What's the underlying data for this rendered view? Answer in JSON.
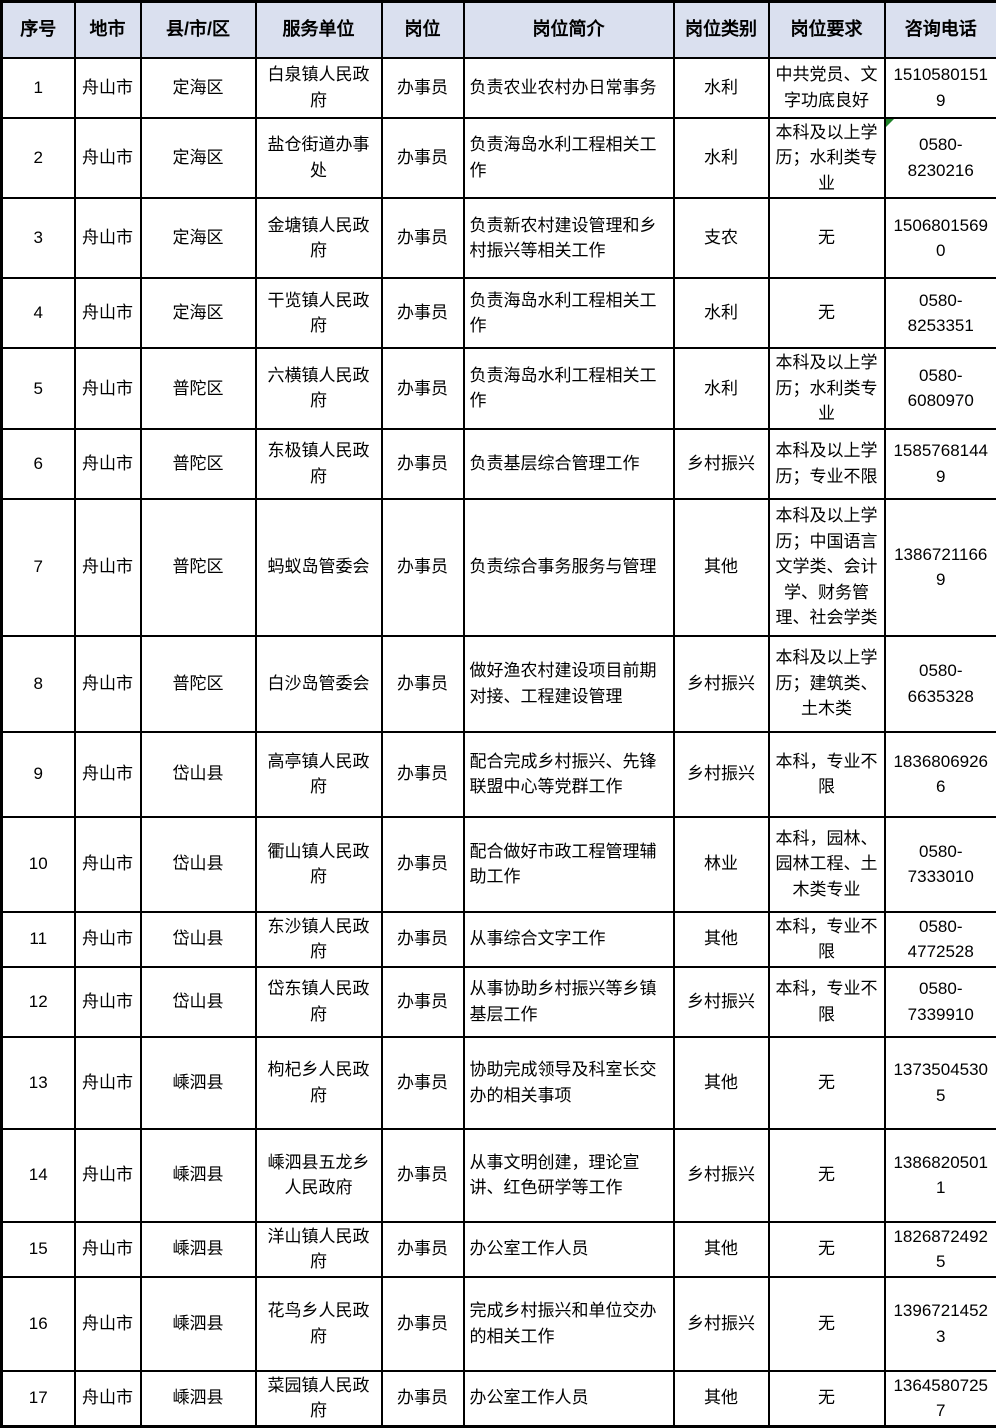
{
  "colors": {
    "header_background": "#dae0ef",
    "border": "#000000",
    "text": "#000000",
    "error_marker_green": "#1e8228",
    "page_background": "#ffffff"
  },
  "table": {
    "headers": [
      "序号",
      "地市",
      "县/市/区",
      "服务单位",
      "岗位",
      "岗位简介",
      "岗位类别",
      "岗位要求",
      "咨询电话"
    ],
    "rows": [
      {
        "no": "1",
        "city": "舟山市",
        "district": "定海区",
        "unit": "白泉镇人民政府",
        "position": "办事员",
        "description": "负责农业农村办日常事务",
        "category": "水利",
        "requirement": "中共党员、文字功底良好",
        "phone": "15105801519"
      },
      {
        "no": "2",
        "city": "舟山市",
        "district": "定海区",
        "unit": "盐仓街道办事处",
        "position": "办事员",
        "description": "负责海岛水利工程相关工作",
        "category": "水利",
        "requirement": "本科及以上学历；水利类专业",
        "phone": "0580-\n8230216",
        "marker": "error-indicator"
      },
      {
        "no": "3",
        "city": "舟山市",
        "district": "定海区",
        "unit": "金塘镇人民政府",
        "position": "办事员",
        "description": "负责新农村建设管理和乡村振兴等相关工作",
        "category": "支农",
        "requirement": "无",
        "phone": "15068015690"
      },
      {
        "no": "4",
        "city": "舟山市",
        "district": "定海区",
        "unit": "干览镇人民政府",
        "position": "办事员",
        "description": "负责海岛水利工程相关工作",
        "category": "水利",
        "requirement": "无",
        "phone": "0580-8253351"
      },
      {
        "no": "5",
        "city": "舟山市",
        "district": "普陀区",
        "unit": "六横镇人民政府",
        "position": "办事员",
        "description": "负责海岛水利工程相关工作",
        "category": "水利",
        "requirement": "本科及以上学历；水利类专业",
        "phone": "0580-6080970"
      },
      {
        "no": "6",
        "city": "舟山市",
        "district": "普陀区",
        "unit": "东极镇人民政府",
        "position": "办事员",
        "description": "负责基层综合管理工作",
        "category": "乡村振兴",
        "requirement": "本科及以上学历；专业不限",
        "phone": "15857681449"
      },
      {
        "no": "7",
        "city": "舟山市",
        "district": "普陀区",
        "unit": "蚂蚁岛管委会",
        "position": "办事员",
        "description": "负责综合事务服务与管理",
        "category": "其他",
        "requirement": "本科及以上学历；中国语言文学类、会计学、财务管理、社会学类",
        "phone": "13867211669"
      },
      {
        "no": "8",
        "city": "舟山市",
        "district": "普陀区",
        "unit": "白沙岛管委会",
        "position": "办事员",
        "description": "做好渔农村建设项目前期对接、工程建设管理",
        "category": "乡村振兴",
        "requirement": "本科及以上学历；建筑类、土木类",
        "phone": "0580-6635328"
      },
      {
        "no": "9",
        "city": "舟山市",
        "district": "岱山县",
        "unit": "高亭镇人民政府",
        "position": "办事员",
        "description": "配合完成乡村振兴、先锋联盟中心等党群工作",
        "category": "乡村振兴",
        "requirement": "本科，专业不限",
        "phone": "18368069266"
      },
      {
        "no": "10",
        "city": "舟山市",
        "district": "岱山县",
        "unit": "衢山镇人民政府",
        "position": "办事员",
        "description": "配合做好市政工程管理辅助工作",
        "category": "林业",
        "requirement": "本科，园林、园林工程、土木类专业",
        "phone": "0580-7333010"
      },
      {
        "no": "11",
        "city": "舟山市",
        "district": "岱山县",
        "unit": "东沙镇人民政府",
        "position": "办事员",
        "description": "从事综合文字工作",
        "category": "其他",
        "requirement": "本科，专业不限",
        "phone": "0580-4772528"
      },
      {
        "no": "12",
        "city": "舟山市",
        "district": "岱山县",
        "unit": "岱东镇人民政府",
        "position": "办事员",
        "description": "从事协助乡村振兴等乡镇基层工作",
        "category": "乡村振兴",
        "requirement": "本科，专业不限",
        "phone": "0580-7339910"
      },
      {
        "no": "13",
        "city": "舟山市",
        "district": "嵊泗县",
        "unit": "枸杞乡人民政府",
        "position": "办事员",
        "description": "协助完成领导及科室长交办的相关事项",
        "category": "其他",
        "requirement": "无",
        "phone": "13735045305"
      },
      {
        "no": "14",
        "city": "舟山市",
        "district": "嵊泗县",
        "unit": "嵊泗县五龙乡人民政府",
        "position": "办事员",
        "description": "从事文明创建，理论宣讲、红色研学等工作",
        "category": "乡村振兴",
        "requirement": "无",
        "phone": "13868205011"
      },
      {
        "no": "15",
        "city": "舟山市",
        "district": "嵊泗县",
        "unit": "洋山镇人民政府",
        "position": "办事员",
        "description": "办公室工作人员",
        "category": "其他",
        "requirement": "无",
        "phone": "18268724925"
      },
      {
        "no": "16",
        "city": "舟山市",
        "district": "嵊泗县",
        "unit": "花鸟乡人民政府",
        "position": "办事员",
        "description": "完成乡村振兴和单位交办的相关工作",
        "category": "乡村振兴",
        "requirement": "无",
        "phone": "13967214523"
      },
      {
        "no": "17",
        "city": "舟山市",
        "district": "嵊泗县",
        "unit": "菜园镇人民政府",
        "position": "办事员",
        "description": "办公室工作人员",
        "category": "其他",
        "requirement": "无",
        "phone": "13645807257"
      }
    ]
  }
}
